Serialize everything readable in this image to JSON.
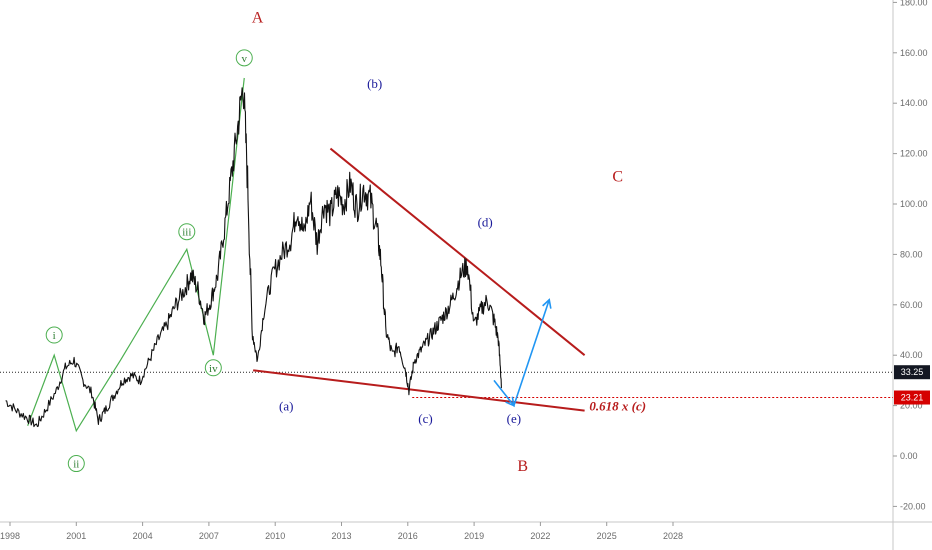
{
  "chart_data": {
    "type": "line",
    "title": "",
    "xlabel": "",
    "ylabel": "",
    "x_ticks": [
      "1998",
      "2001",
      "2004",
      "2007",
      "2010",
      "2013",
      "2016",
      "2019",
      "2022",
      "2025",
      "2028"
    ],
    "y_ticks": [
      "180.00",
      "160.00",
      "140.00",
      "120.00",
      "100.00",
      "80.00",
      "60.00",
      "40.00",
      "20.00",
      "0.00",
      "-20.00"
    ],
    "ylim": [
      -20,
      180
    ],
    "xlim": [
      1998,
      2028
    ],
    "grid": false,
    "price_series": {
      "name": "",
      "x": [
        1997.8,
        1998.3,
        1998.8,
        1999.2,
        1999.6,
        2000.1,
        2000.5,
        2000.9,
        2001.3,
        2001.7,
        2002.0,
        2002.3,
        2002.7,
        2003.1,
        2003.5,
        2003.9,
        2004.3,
        2004.7,
        2005.1,
        2005.5,
        2005.9,
        2006.2,
        2006.5,
        2006.8,
        2007.1,
        2007.4,
        2007.7,
        2008.0,
        2008.3,
        2008.55,
        2008.75,
        2008.95,
        2009.2,
        2009.5,
        2009.9,
        2010.3,
        2010.7,
        2011.0,
        2011.3,
        2011.6,
        2011.9,
        2012.2,
        2012.5,
        2012.8,
        2013.1,
        2013.4,
        2013.7,
        2014.0,
        2014.3,
        2014.6,
        2014.8,
        2015.0,
        2015.3,
        2015.6,
        2015.9,
        2016.05,
        2016.3,
        2016.6,
        2016.9,
        2017.2,
        2017.5,
        2017.8,
        2018.1,
        2018.4,
        2018.7,
        2019.0,
        2019.3,
        2019.6,
        2019.9,
        2020.1,
        2020.25
      ],
      "values": [
        22,
        18,
        15,
        12,
        18,
        26,
        35,
        38,
        30,
        25,
        14,
        18,
        24,
        30,
        32,
        30,
        38,
        46,
        52,
        60,
        66,
        72,
        66,
        55,
        62,
        72,
        90,
        110,
        130,
        148,
        110,
        50,
        38,
        58,
        72,
        80,
        86,
        98,
        88,
        102,
        84,
        100,
        96,
        104,
        100,
        108,
        98,
        106,
        102,
        90,
        76,
        50,
        40,
        44,
        34,
        26,
        38,
        42,
        46,
        50,
        54,
        58,
        64,
        72,
        76,
        52,
        58,
        62,
        54,
        46,
        27
      ]
    },
    "elliott_impulse": {
      "x": [
        1998.8,
        2000.0,
        2001.0,
        2003.0,
        2006.0,
        2007.2,
        2008.6
      ],
      "values": [
        12,
        40,
        10,
        38,
        82,
        40,
        150
      ],
      "labels": [
        "i",
        "ii",
        "iii",
        "iv",
        "v"
      ],
      "label_x": [
        2000.0,
        2001.0,
        2006.0,
        2007.2,
        2008.6
      ],
      "label_y": [
        48,
        -3,
        89,
        35,
        158
      ]
    },
    "trendlines": [
      {
        "name": "",
        "x": [
          2012.5,
          2024.0
        ],
        "values": [
          122,
          40
        ],
        "color": "#b71c1c"
      },
      {
        "name": "",
        "x": [
          2009.0,
          2024.0
        ],
        "values": [
          34,
          18
        ],
        "color": "#b71c1c"
      }
    ],
    "projection": {
      "x": [
        2019.9,
        2020.8,
        2022.4
      ],
      "values": [
        30,
        20,
        62
      ],
      "color": "#2196f3"
    },
    "fib_line": {
      "value": 23.21,
      "x_start": 2016.2,
      "color": "#d50000"
    },
    "current_line": {
      "value": 33.25
    },
    "annotations": [
      {
        "text": "A",
        "x": 2009.2,
        "y": 172,
        "color": "#b71c1c",
        "size": 16
      },
      {
        "text": "(b)",
        "x": 2014.5,
        "y": 146,
        "color": "#1a1a9a",
        "size": 13
      },
      {
        "text": "C",
        "x": 2025.5,
        "y": 109,
        "color": "#b71c1c",
        "size": 16
      },
      {
        "text": "(d)",
        "x": 2019.5,
        "y": 91,
        "color": "#1a1a9a",
        "size": 13
      },
      {
        "text": "(a)",
        "x": 2010.5,
        "y": 18,
        "color": "#1a1a9a",
        "size": 13
      },
      {
        "text": "(c)",
        "x": 2016.8,
        "y": 13,
        "color": "#1a1a9a",
        "size": 13
      },
      {
        "text": "(e)",
        "x": 2020.8,
        "y": 13,
        "color": "#1a1a9a",
        "size": 13
      },
      {
        "text": "B",
        "x": 2021.2,
        "y": -6,
        "color": "#b71c1c",
        "size": 16
      },
      {
        "text": "0.618 x (c)",
        "x": 2025.5,
        "y": 18,
        "color": "#b71c1c",
        "size": 13,
        "italic": true
      }
    ],
    "price_badges": [
      {
        "value": 33.25,
        "text": "33.25",
        "bg": "#131722"
      },
      {
        "value": 23.21,
        "text": "23.21",
        "bg": "#d50000"
      }
    ]
  }
}
